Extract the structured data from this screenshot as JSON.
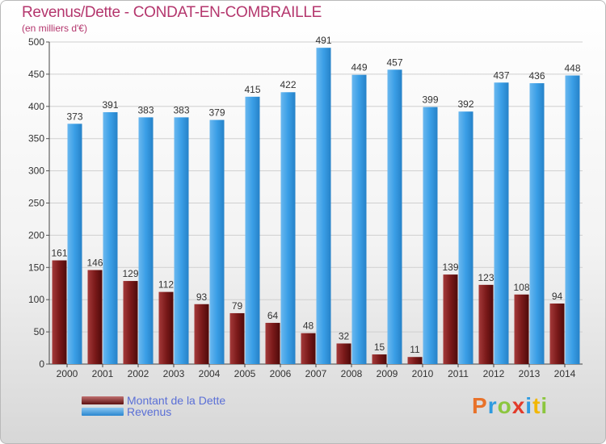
{
  "title": "Revenus/Dette - CONDAT-EN-COMBRAILLE",
  "subtitle": "(en milliers d'€)",
  "logo": {
    "letters": [
      "P",
      "r",
      "o",
      "x",
      "i",
      "t",
      "i"
    ],
    "colors": [
      "#e8722a",
      "#2e9be0",
      "#8cc63f",
      "#e23b2a",
      "#2e9be0",
      "#f2b705",
      "#8cc63f"
    ]
  },
  "colors": {
    "dette": "#7b1a1a",
    "revenus": "#3a9ee6",
    "title": "#b4366d"
  },
  "chart_data": {
    "type": "bar",
    "categories": [
      "2000",
      "2001",
      "2002",
      "2003",
      "2004",
      "2005",
      "2006",
      "2007",
      "2008",
      "2009",
      "2010",
      "2011",
      "2012",
      "2013",
      "2014"
    ],
    "series": [
      {
        "name": "Montant de la Dette",
        "values": [
          161,
          146,
          129,
          112,
          93,
          79,
          64,
          48,
          32,
          15,
          11,
          139,
          123,
          108,
          94
        ],
        "labels": [
          "161",
          "146",
          "129",
          "112",
          "93",
          "79",
          "64",
          "48",
          "32",
          "15",
          "11",
          "139",
          "123",
          "108",
          "94"
        ]
      },
      {
        "name": "Revenus",
        "values": [
          373,
          391,
          383,
          383,
          379,
          415,
          422,
          491,
          449,
          457,
          399,
          392,
          437,
          436,
          448
        ],
        "labels": [
          "373",
          "391",
          "383",
          "383",
          "379",
          "415",
          "422",
          "491",
          "449",
          "457",
          "399",
          "392",
          "437",
          "436",
          "448"
        ]
      }
    ],
    "ylim": [
      0,
      500
    ],
    "yticks": [
      0,
      50,
      100,
      150,
      200,
      250,
      300,
      350,
      400,
      450,
      500
    ],
    "grid": true,
    "legend": "bottom-left"
  }
}
